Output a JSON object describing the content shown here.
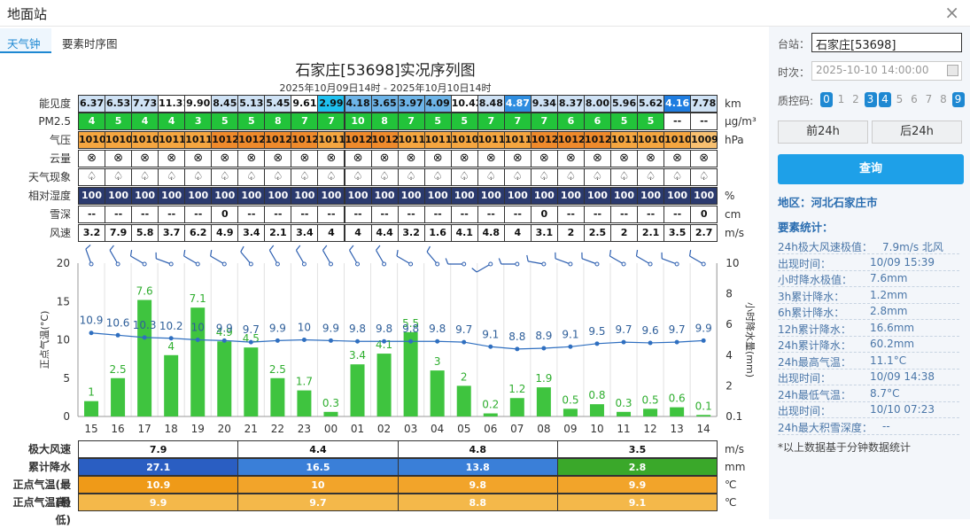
{
  "window": {
    "title": "地面站",
    "close": "×"
  },
  "tabs": [
    {
      "label": "天气钟"
    },
    {
      "label": "要素时序图"
    }
  ],
  "chart": {
    "title": "石家庄[53698]实况序列图",
    "subtitle": "2025年10月09日14时 - 2025年10月10日14时",
    "hours": [
      "15",
      "16",
      "17",
      "18",
      "19",
      "20",
      "21",
      "22",
      "23",
      "00",
      "01",
      "02",
      "03",
      "04",
      "05",
      "06",
      "07",
      "08",
      "09",
      "10",
      "11",
      "12",
      "13",
      "14"
    ],
    "rows": [
      {
        "label": "能见度",
        "unit": "km",
        "values": [
          "6.37",
          "6.53",
          "7.73",
          "11.31",
          "9.90",
          "8.45",
          "5.13",
          "5.45",
          "9.61",
          "2.99",
          "4.18",
          "3.65",
          "3.97",
          "4.09",
          "10.42",
          "8.48",
          "4.87",
          "9.34",
          "8.37",
          "8.00",
          "5.96",
          "5.62",
          "4.16",
          "7.78"
        ],
        "colors": [
          "#cfe2f5",
          "#cfe2f5",
          "#cfe2f5",
          "#ffffff",
          "#ffffff",
          "#cfe2f5",
          "#cfe2f5",
          "#cfe2f5",
          "#ffffff",
          "#1fc1f0",
          "#6db4e8",
          "#6db4e8",
          "#6db4e8",
          "#6db4e8",
          "#ffffff",
          "#cfe2f5",
          "#2f8ee0",
          "#cfe2f5",
          "#cfe2f5",
          "#cfe2f5",
          "#cfe2f5",
          "#cfe2f5",
          "#1f7de0",
          "#cfe2f5"
        ]
      },
      {
        "label": "PM2.5",
        "unit": "μg/m³",
        "values": [
          "4",
          "5",
          "4",
          "4",
          "3",
          "5",
          "5",
          "8",
          "7",
          "7",
          "10",
          "8",
          "7",
          "5",
          "5",
          "7",
          "7",
          "7",
          "6",
          "6",
          "5",
          "5",
          "--",
          "--"
        ],
        "colors": [
          "#22c33a",
          "#22c33a",
          "#22c33a",
          "#22c33a",
          "#22c33a",
          "#22c33a",
          "#22c33a",
          "#22c33a",
          "#22c33a",
          "#22c33a",
          "#22c33a",
          "#22c33a",
          "#22c33a",
          "#22c33a",
          "#22c33a",
          "#22c33a",
          "#22c33a",
          "#22c33a",
          "#22c33a",
          "#22c33a",
          "#22c33a",
          "#22c33a",
          "#ffffff",
          "#ffffff"
        ]
      },
      {
        "label": "气压",
        "unit": "hPa",
        "values": [
          "1010",
          "1010",
          "1010",
          "1011",
          "1011",
          "1012",
          "1012",
          "1012",
          "1012",
          "1011",
          "1012",
          "1012",
          "1011",
          "1011",
          "1010",
          "1011",
          "1011",
          "1012",
          "1012",
          "1012",
          "1011",
          "1010",
          "1010",
          "1009"
        ],
        "colors": [
          "#f5a640",
          "#f5a640",
          "#f5a640",
          "#f5a640",
          "#f5a640",
          "#ef8a2b",
          "#ef8a2b",
          "#ef8a2b",
          "#ef8a2b",
          "#f5a640",
          "#ef8a2b",
          "#ef8a2b",
          "#f5a640",
          "#f5a640",
          "#f5a640",
          "#f5a640",
          "#f5a640",
          "#ef8a2b",
          "#ef8a2b",
          "#ef8a2b",
          "#f5a640",
          "#f5a640",
          "#f5a640",
          "#f8c070"
        ]
      },
      {
        "label": "云量",
        "unit": "",
        "values": [
          "⊗",
          "⊗",
          "⊗",
          "⊗",
          "⊗",
          "⊗",
          "⊗",
          "⊗",
          "⊗",
          "⊗",
          "⊗",
          "⊗",
          "⊗",
          "⊗",
          "⊗",
          "⊗",
          "⊗",
          "⊗",
          "⊗",
          "⊗",
          "⊗",
          "⊗",
          "⊗",
          "⊗"
        ]
      },
      {
        "label": "天气现象",
        "unit": "",
        "values": [
          "♤",
          "♤",
          "♤",
          "♤",
          "♤",
          "♤",
          "♤",
          "♤",
          "♤",
          "♤",
          "♤",
          "♤",
          "♤",
          "♤",
          "♤",
          "♤",
          "♤",
          "♤",
          "♤",
          "♤",
          "♤",
          "♤",
          "♤",
          "♤"
        ]
      },
      {
        "label": "相对湿度",
        "unit": "%",
        "values": [
          "100",
          "100",
          "100",
          "100",
          "100",
          "100",
          "100",
          "100",
          "100",
          "100",
          "100",
          "100",
          "100",
          "100",
          "100",
          "100",
          "100",
          "100",
          "100",
          "100",
          "100",
          "100",
          "100",
          "100"
        ],
        "color": "#2b3a6e"
      },
      {
        "label": "雪深",
        "unit": "cm",
        "values": [
          "--",
          "--",
          "--",
          "--",
          "--",
          "0",
          "--",
          "--",
          "--",
          "--",
          "--",
          "--",
          "--",
          "--",
          "--",
          "--",
          "--",
          "0",
          "--",
          "--",
          "--",
          "--",
          "--",
          "0"
        ]
      },
      {
        "label": "风速",
        "unit": "m/s",
        "values": [
          "3.2",
          "7.9",
          "5.8",
          "3.7",
          "6.2",
          "4.9",
          "3.4",
          "2.1",
          "3.4",
          "4",
          "4",
          "4.4",
          "3.2",
          "1.6",
          "4.1",
          "4.8",
          "4",
          "3.1",
          "2",
          "2.5",
          "2",
          "2.1",
          "3.5",
          "2.7"
        ]
      }
    ]
  },
  "chart_data": {
    "type": "bar",
    "categories": [
      "15",
      "16",
      "17",
      "18",
      "19",
      "20",
      "21",
      "22",
      "23",
      "00",
      "01",
      "02",
      "03",
      "04",
      "05",
      "06",
      "07",
      "08",
      "09",
      "10",
      "11",
      "12",
      "13",
      "14"
    ],
    "series": [
      {
        "name": "小时降水量",
        "values": [
          1,
          2.5,
          7.6,
          4,
          7.1,
          4.9,
          4.5,
          2.5,
          1.7,
          0.3,
          3.4,
          4.1,
          5.5,
          3,
          2,
          0.2,
          1.2,
          1.9,
          0.5,
          0.8,
          0.3,
          0.5,
          0.6,
          0.1
        ],
        "color": "#3fc43f"
      },
      {
        "name": "正点气温",
        "type": "line",
        "values": [
          10.9,
          10.6,
          10.3,
          10.2,
          10,
          9.9,
          9.7,
          9.9,
          10,
          9.9,
          9.8,
          9.8,
          9.8,
          9.8,
          9.7,
          9.1,
          8.8,
          8.9,
          9.1,
          9.5,
          9.7,
          9.6,
          9.7,
          9.9
        ],
        "color": "#2f6fc0"
      }
    ],
    "ylabel": "正点气温(°C)",
    "ylabel_right": "小时降水量(mm)",
    "ylim": [
      0,
      20
    ],
    "ylim_right": [
      0.1,
      10
    ],
    "left_ticks": [
      "0",
      "5",
      "10",
      "15",
      "20"
    ],
    "right_ticks": [
      "0.1",
      "2",
      "4",
      "6",
      "8",
      "10"
    ],
    "wind_dir_deg": [
      340,
      330,
      300,
      290,
      300,
      300,
      320,
      330,
      330,
      330,
      330,
      330,
      300,
      320,
      270,
      240,
      270,
      280,
      290,
      290,
      300,
      300,
      290,
      300
    ]
  },
  "bottom_table": {
    "rows": [
      {
        "label": "极大风速",
        "unit": "m/s",
        "values": [
          "7.9",
          "4.4",
          "4.8",
          "3.5"
        ],
        "colors": [
          "#ffffff",
          "#ffffff",
          "#ffffff",
          "#ffffff"
        ]
      },
      {
        "label": "累计降水",
        "unit": "mm",
        "values": [
          "27.1",
          "16.5",
          "13.8",
          "2.8"
        ],
        "colors": [
          "#2a5ec2",
          "#3a7fd8",
          "#3a7fd8",
          "#3aa82a"
        ]
      },
      {
        "label": "正点气温(最高)",
        "unit": "℃",
        "values": [
          "10.9",
          "10",
          "9.8",
          "9.9"
        ],
        "colors": [
          "#ef9a18",
          "#f2a42a",
          "#f2a42a",
          "#f2a42a"
        ]
      },
      {
        "label": "正点气温(最低)",
        "unit": "℃",
        "values": [
          "9.9",
          "9.7",
          "8.8",
          "9.1"
        ],
        "colors": [
          "#f4b84a",
          "#f4b84a",
          "#f4b84a",
          "#f4b84a"
        ]
      }
    ]
  },
  "side": {
    "station_label": "台站：",
    "station_value": "石家庄[53698]",
    "time_label": "时次：",
    "time_value": "2025-10-10 14:00:00",
    "qc_label": "质控码:",
    "qc_codes": [
      "0",
      "1",
      "2",
      "3",
      "4",
      "5",
      "6",
      "7",
      "8",
      "9"
    ],
    "qc_on": [
      true,
      false,
      false,
      true,
      true,
      false,
      false,
      false,
      false,
      true
    ],
    "prev_button": "前24h",
    "next_button": "后24h",
    "query_button": "查询",
    "region": "地区：河北石家庄市",
    "stats_title": "要素统计：",
    "stats": [
      {
        "k": "24h极大风速极值：",
        "v": "7.9m/s 北风"
      },
      {
        "k": "出现时间：",
        "v": "10/09 15:39"
      },
      {
        "k": "小时降水极值：",
        "v": "7.6mm"
      },
      {
        "k": "3h累计降水：",
        "v": "1.2mm"
      },
      {
        "k": "6h累计降水：",
        "v": "2.8mm"
      },
      {
        "k": "12h累计降水：",
        "v": "16.6mm"
      },
      {
        "k": "24h累计降水：",
        "v": "60.2mm"
      },
      {
        "k": "24h最高气温：",
        "v": "11.1°C"
      },
      {
        "k": "出现时间：",
        "v": "10/09 14:38"
      },
      {
        "k": "24h最低气温：",
        "v": "8.7°C"
      },
      {
        "k": "出现时间：",
        "v": "10/10 07:23"
      },
      {
        "k": "24h最大积雪深度：",
        "v": "--"
      }
    ],
    "footnote": "*以上数据基于分钟数据统计"
  }
}
